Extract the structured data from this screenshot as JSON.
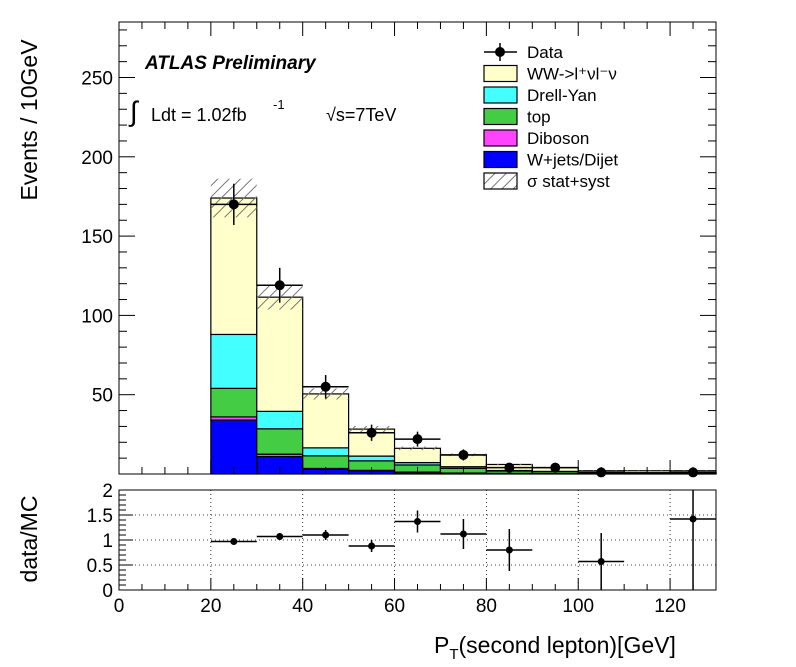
{
  "chart_data": [
    {
      "type": "bar",
      "subtype": "stacked-histogram",
      "title": "",
      "ylabel": "Events / 10GeV",
      "xlabel": "",
      "xlim": [
        0,
        130
      ],
      "ylim": [
        0,
        285
      ],
      "yticks": [
        50,
        100,
        150,
        200,
        250
      ],
      "bin_edges": [
        0,
        10,
        20,
        30,
        40,
        50,
        60,
        70,
        80,
        90,
        100,
        110,
        120,
        130
      ],
      "series": [
        {
          "name": "W+jets/Dijet",
          "color": "#0000ff",
          "values": [
            0,
            0,
            34,
            11,
            3,
            2,
            1,
            0.5,
            0.3,
            0.2,
            0.1,
            0.1,
            0.1
          ]
        },
        {
          "name": "Diboson",
          "color": "#ff44ff",
          "values": [
            0,
            0,
            2,
            1.5,
            0.5,
            0.3,
            0.2,
            0.1,
            0.1,
            0.05,
            0.05,
            0.05,
            0.05
          ]
        },
        {
          "name": "top",
          "color": "#44cc44",
          "values": [
            0,
            0,
            18,
            16,
            8,
            6,
            4.5,
            3,
            1.5,
            1.2,
            0.5,
            0.5,
            0.5
          ]
        },
        {
          "name": "Drell-Yan",
          "color": "#44ffff",
          "values": [
            0,
            0,
            34,
            11,
            5,
            3,
            1.5,
            1,
            0.3,
            0.2,
            0.2,
            0.2,
            0.2
          ]
        },
        {
          "name": "WW->l⁺νl⁻ν",
          "color": "#ffffcc",
          "values": [
            0,
            0,
            86,
            72,
            34,
            17,
            9,
            7.5,
            3.8,
            2.4,
            1.2,
            1.2,
            1.2
          ]
        }
      ],
      "data": {
        "name": "Data",
        "x": [
          25,
          35,
          45,
          55,
          65,
          75,
          85,
          95,
          105,
          115,
          125
        ],
        "y": [
          170,
          119,
          55,
          26,
          22,
          12,
          4,
          4,
          1,
          0,
          1
        ],
        "yerr": [
          13,
          11,
          7.4,
          5.1,
          4.7,
          3.5,
          2,
          2,
          1,
          0,
          1
        ]
      },
      "uncertainty_band": {
        "name": "σ stat+syst",
        "rel": 0.07
      },
      "annotations": {
        "atlas": "ATLAS Preliminary",
        "lumi_int": "∫",
        "lumi_text": "Ldt = 1.02fb",
        "lumi_sup": "-1",
        "energy": "√s=7TeV"
      },
      "legend": {
        "position": "top-right",
        "entries": [
          {
            "label": "Data",
            "style": "marker"
          },
          {
            "label": "WW->l⁺νl⁻ν",
            "style": "fill",
            "color": "#ffffcc"
          },
          {
            "label": "Drell-Yan",
            "style": "fill",
            "color": "#44ffff"
          },
          {
            "label": "top",
            "style": "fill",
            "color": "#44cc44"
          },
          {
            "label": "Diboson",
            "style": "fill",
            "color": "#ff44ff"
          },
          {
            "label": "W+jets/Dijet",
            "style": "fill",
            "color": "#0000ff"
          },
          {
            "label": "σ stat+syst",
            "style": "hatch"
          }
        ]
      }
    },
    {
      "type": "scatter",
      "subtype": "ratio",
      "ylabel": "data/MC",
      "xlabel": "P_T(second lepton)[GeV]",
      "xlabel_main": "P",
      "xlabel_sub": "T",
      "xlabel_rest": "(second lepton)[GeV]",
      "xlim": [
        0,
        130
      ],
      "ylim": [
        0,
        2
      ],
      "yticks": [
        "0",
        "0.5",
        "1",
        "1.5",
        "2"
      ],
      "ytick_values": [
        0,
        0.5,
        1,
        1.5,
        2
      ],
      "xticks": [
        "0",
        "20",
        "40",
        "60",
        "80",
        "100",
        "120"
      ],
      "xtick_values": [
        0,
        20,
        40,
        60,
        80,
        100,
        120
      ],
      "grid": true,
      "points": [
        {
          "x": 25,
          "y": 0.97,
          "yerr": 0.04
        },
        {
          "x": 35,
          "y": 1.07,
          "yerr": 0.07
        },
        {
          "x": 45,
          "y": 1.1,
          "yerr": 0.1
        },
        {
          "x": 55,
          "y": 0.88,
          "yerr": 0.12
        },
        {
          "x": 65,
          "y": 1.37,
          "yerr": 0.22
        },
        {
          "x": 75,
          "y": 1.12,
          "yerr": 0.3
        },
        {
          "x": 85,
          "y": 0.8,
          "yerr": 0.42
        },
        {
          "x": 105,
          "y": 0.57,
          "yerr": 0.57
        },
        {
          "x": 125,
          "y": 1.42,
          "yerr": 1.42
        }
      ]
    }
  ]
}
